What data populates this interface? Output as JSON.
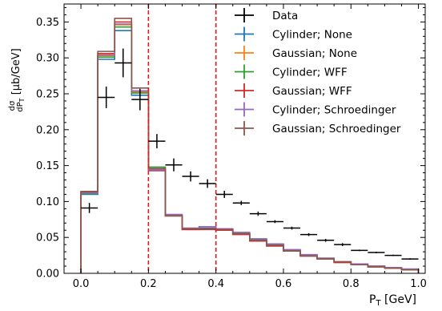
{
  "chart_data": {
    "type": "line",
    "xlabel": "P_T [GeV]",
    "ylabel": "dσ/dP_T [μb/GeV]",
    "xlim": [
      -0.05,
      1.02
    ],
    "ylim": [
      0.0,
      0.375
    ],
    "x_ticks": [
      "0.0",
      "0.2",
      "0.4",
      "0.6",
      "0.8",
      "1.0"
    ],
    "y_ticks": [
      "0.00",
      "0.05",
      "0.10",
      "0.15",
      "0.20",
      "0.25",
      "0.30",
      "0.35"
    ],
    "vertical_lines": [
      0.2,
      0.4
    ],
    "vertical_line_color": "#e31a1c",
    "legend_position": "top-right",
    "bin_edges": [
      0.0,
      0.05,
      0.1,
      0.15,
      0.2,
      0.25,
      0.3,
      0.35,
      0.4,
      0.45,
      0.5,
      0.55,
      0.6,
      0.65,
      0.7,
      0.75,
      0.8,
      0.85,
      0.9,
      0.95,
      1.0
    ],
    "series": [
      {
        "name": "Cylinder; None",
        "color": "#1f77b4",
        "style": "step",
        "values": [
          0.11,
          0.298,
          0.338,
          0.248,
          0.143,
          0.08,
          0.062,
          0.063,
          0.06,
          0.055,
          0.047,
          0.04,
          0.032,
          0.025,
          0.021,
          0.016,
          0.013,
          0.01,
          0.008,
          0.005
        ]
      },
      {
        "name": "Gaussian; None",
        "color": "#ff7f0e",
        "style": "step",
        "values": [
          0.112,
          0.303,
          0.346,
          0.252,
          0.145,
          0.081,
          0.061,
          0.062,
          0.061,
          0.055,
          0.046,
          0.039,
          0.031,
          0.025,
          0.02,
          0.016,
          0.012,
          0.009,
          0.008,
          0.005
        ]
      },
      {
        "name": "Cylinder; WFF",
        "color": "#2ca02c",
        "style": "step",
        "values": [
          0.111,
          0.301,
          0.343,
          0.251,
          0.148,
          0.081,
          0.062,
          0.062,
          0.061,
          0.056,
          0.048,
          0.04,
          0.032,
          0.025,
          0.021,
          0.016,
          0.013,
          0.01,
          0.008,
          0.006
        ]
      },
      {
        "name": "Gaussian; WFF",
        "color": "#d62728",
        "style": "step",
        "values": [
          0.113,
          0.306,
          0.35,
          0.254,
          0.143,
          0.08,
          0.061,
          0.061,
          0.06,
          0.054,
          0.045,
          0.038,
          0.031,
          0.024,
          0.02,
          0.015,
          0.012,
          0.009,
          0.007,
          0.005
        ]
      },
      {
        "name": "Cylinder; Schroedinger",
        "color": "#9467bd",
        "style": "step",
        "values": [
          0.112,
          0.304,
          0.347,
          0.254,
          0.144,
          0.082,
          0.063,
          0.065,
          0.062,
          0.057,
          0.048,
          0.041,
          0.033,
          0.026,
          0.021,
          0.016,
          0.013,
          0.01,
          0.008,
          0.006
        ]
      },
      {
        "name": "Gaussian; Schroedinger",
        "color": "#8c564b",
        "style": "step",
        "values": [
          0.114,
          0.309,
          0.355,
          0.258,
          0.146,
          0.08,
          0.062,
          0.062,
          0.061,
          0.055,
          0.046,
          0.039,
          0.031,
          0.024,
          0.02,
          0.016,
          0.012,
          0.009,
          0.007,
          0.005
        ]
      },
      {
        "name": "Data",
        "color": "#000000",
        "style": "errorbar",
        "x": [
          0.025,
          0.075,
          0.125,
          0.175,
          0.225,
          0.275,
          0.325,
          0.375,
          0.425,
          0.475,
          0.525,
          0.575,
          0.625,
          0.675,
          0.725,
          0.775,
          0.825,
          0.875,
          0.925,
          0.975
        ],
        "y": [
          0.091,
          0.245,
          0.293,
          0.242,
          0.184,
          0.151,
          0.135,
          0.125,
          0.11,
          0.098,
          0.083,
          0.072,
          0.063,
          0.054,
          0.046,
          0.04,
          0.032,
          0.029,
          0.025,
          0.02
        ],
        "yerr": [
          0.007,
          0.015,
          0.02,
          0.015,
          0.01,
          0.009,
          0.007,
          0.006,
          0.005,
          0.003,
          0.003,
          0.002,
          0.002,
          0.002,
          0.002,
          0.002,
          0.001,
          0.001,
          0.001,
          0.001
        ],
        "xerr": 0.025
      }
    ]
  }
}
